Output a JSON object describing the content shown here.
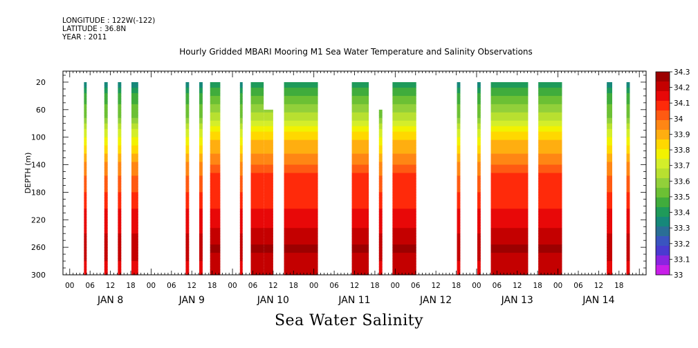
{
  "header": {
    "longitude": "LONGITUDE : 122W(-122)",
    "latitude": "LATITUDE : 36.8N",
    "year": "YEAR : 2011"
  },
  "chart_data": {
    "type": "heatmap",
    "title": "Hourly Gridded MBARI Mooring M1 Sea Water Temperature and Salinity Observations",
    "bottom_title": "Sea Water Salinity",
    "ylabel": "DEPTH (m)",
    "y_range": [
      300,
      4
    ],
    "y_ticks": [
      20,
      60,
      100,
      140,
      180,
      220,
      260,
      300
    ],
    "x_hour_ticks": [
      "00",
      "06",
      "12",
      "18",
      "00",
      "06",
      "12",
      "18",
      "00",
      "06",
      "12",
      "18",
      "00",
      "06",
      "12",
      "18",
      "00",
      "06",
      "12",
      "18",
      "00",
      "06",
      "12",
      "18",
      "00",
      "06",
      "12",
      "18"
    ],
    "x_day_labels": [
      "JAN  8",
      "JAN  9",
      "JAN 10",
      "JAN 11",
      "JAN 12",
      "JAN 13",
      "JAN 14"
    ],
    "x_range_hours": [
      -2,
      170
    ],
    "colorbar": {
      "levels": [
        "34.3",
        "34.2",
        "34.1",
        "34",
        "33.9",
        "33.8",
        "33.7",
        "33.6",
        "33.5",
        "33.4",
        "33.3",
        "33.2",
        "33.1",
        "33"
      ],
      "colors": [
        "#9c0000",
        "#c40000",
        "#e80808",
        "#ff2a0a",
        "#ff5a12",
        "#ff8614",
        "#ffae10",
        "#ffd800",
        "#f2f200",
        "#d4ee2a",
        "#b8e030",
        "#92d03a",
        "#6cc034",
        "#40ac3c",
        "#1f9a5a",
        "#16887a",
        "#2a6e96",
        "#3a54c0",
        "#4a3ad0",
        "#8a24e0",
        "#c81ee8"
      ],
      "min": 33.0,
      "max": 34.3
    },
    "profiles": [
      {
        "name": "shallow",
        "points": [
          [
            20,
            33.3
          ],
          [
            40,
            33.45
          ],
          [
            70,
            33.55
          ],
          [
            100,
            33.75
          ],
          [
            140,
            33.95
          ],
          [
            180,
            34.05
          ],
          [
            220,
            34.15
          ],
          [
            260,
            34.2
          ],
          [
            300,
            34.15
          ]
        ]
      },
      {
        "name": "deep_mixed",
        "points": [
          [
            20,
            33.4
          ],
          [
            40,
            33.5
          ],
          [
            70,
            33.65
          ],
          [
            100,
            33.85
          ],
          [
            130,
            33.95
          ],
          [
            150,
            34.05
          ],
          [
            200,
            34.1
          ],
          [
            240,
            34.2
          ],
          [
            260,
            34.25
          ],
          [
            300,
            34.2
          ]
        ]
      }
    ],
    "data_segments": [
      {
        "start": 4.2,
        "end": 5.0,
        "top": 20,
        "profile": "shallow"
      },
      {
        "start": 10.2,
        "end": 11.2,
        "top": 20,
        "profile": "shallow"
      },
      {
        "start": 14.2,
        "end": 15.2,
        "top": 20,
        "profile": "shallow"
      },
      {
        "start": 18.2,
        "end": 20.2,
        "top": 20,
        "profile": "shallow"
      },
      {
        "start": 34.2,
        "end": 35.2,
        "top": 20,
        "profile": "shallow"
      },
      {
        "start": 38.2,
        "end": 39.2,
        "top": 20,
        "profile": "shallow"
      },
      {
        "start": 41.4,
        "end": 44.4,
        "top": 20,
        "profile": "deep_mixed"
      },
      {
        "start": 50.2,
        "end": 51.0,
        "top": 20,
        "profile": "shallow"
      },
      {
        "start": 53.4,
        "end": 57.2,
        "top": 20,
        "profile": "deep_mixed"
      },
      {
        "start": 57.2,
        "end": 60.0,
        "top": 60,
        "profile": "deep_mixed"
      },
      {
        "start": 63.2,
        "end": 73.2,
        "top": 20,
        "profile": "deep_mixed"
      },
      {
        "start": 83.2,
        "end": 88.2,
        "top": 20,
        "profile": "deep_mixed"
      },
      {
        "start": 91.2,
        "end": 92.2,
        "top": 60,
        "profile": "shallow"
      },
      {
        "start": 95.2,
        "end": 102.2,
        "top": 20,
        "profile": "deep_mixed"
      },
      {
        "start": 114.2,
        "end": 115.2,
        "top": 20,
        "profile": "shallow"
      },
      {
        "start": 120.2,
        "end": 121.2,
        "top": 20,
        "profile": "shallow"
      },
      {
        "start": 124.2,
        "end": 135.2,
        "top": 20,
        "profile": "deep_mixed"
      },
      {
        "start": 138.2,
        "end": 145.2,
        "top": 20,
        "profile": "deep_mixed"
      },
      {
        "start": 158.4,
        "end": 160.0,
        "top": 20,
        "profile": "shallow"
      },
      {
        "start": 164.2,
        "end": 165.2,
        "top": 20,
        "profile": "shallow"
      }
    ]
  }
}
